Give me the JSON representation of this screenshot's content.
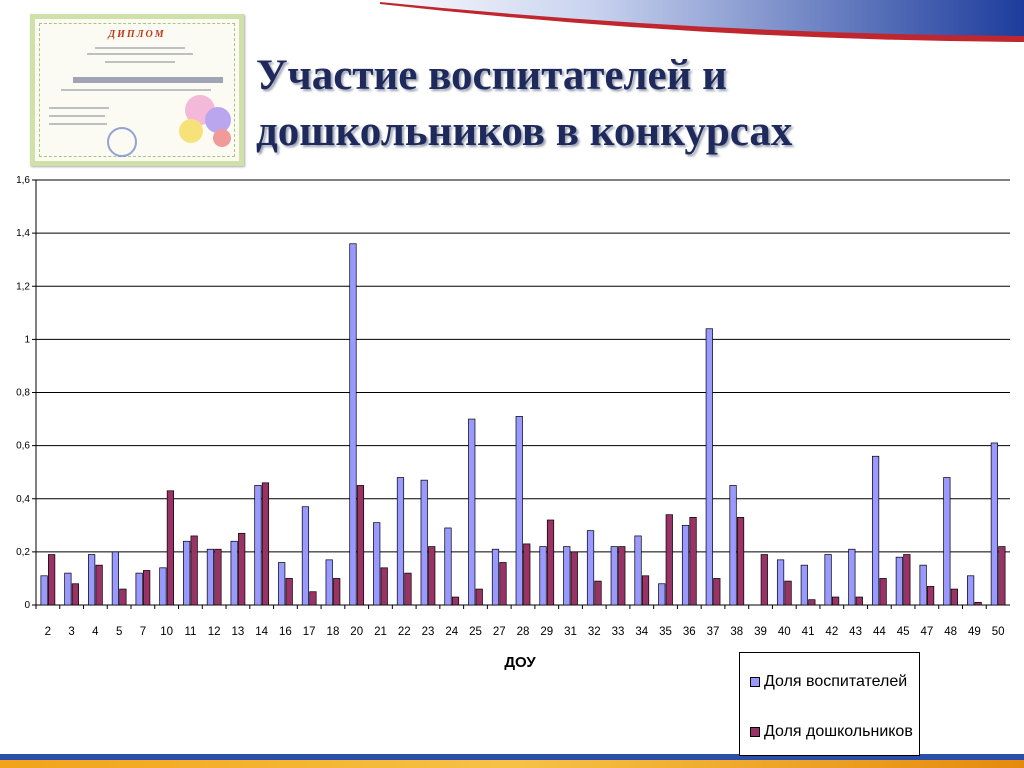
{
  "page": {
    "title_line1": "Участие воспитателей и",
    "title_line2": "дошкольников в конкурсах"
  },
  "diploma": {
    "heading": "ДИПЛОМ",
    "palette": {
      "border": "#cfe1a8",
      "stamp": "#6f86c9"
    }
  },
  "chart_data": {
    "type": "bar",
    "xlabel": "ДОУ",
    "ylabel": "",
    "ylim": [
      0,
      1.6
    ],
    "yticks": [
      "0",
      "0,2",
      "0,4",
      "0,6",
      "0,8",
      "1",
      "1,2",
      "1,4",
      "1,6"
    ],
    "grid": true,
    "legend_position": "bottom-right",
    "categories": [
      "2",
      "3",
      "4",
      "5",
      "7",
      "10",
      "11",
      "12",
      "13",
      "14",
      "16",
      "17",
      "18",
      "20",
      "21",
      "22",
      "23",
      "24",
      "25",
      "27",
      "28",
      "29",
      "31",
      "32",
      "33",
      "34",
      "35",
      "36",
      "37",
      "38",
      "39",
      "40",
      "41",
      "42",
      "43",
      "44",
      "45",
      "47",
      "48",
      "49",
      "50"
    ],
    "series": [
      {
        "name": "Доля воспитателей",
        "color": "#9999ff",
        "values": [
          0.11,
          0.12,
          0.19,
          0.2,
          0.12,
          0.14,
          0.24,
          0.21,
          0.24,
          0.45,
          0.16,
          0.37,
          0.17,
          1.36,
          0.31,
          0.48,
          0.47,
          0.29,
          0.7,
          0.21,
          0.71,
          0.22,
          0.22,
          0.28,
          0.22,
          0.26,
          0.08,
          0.3,
          1.04,
          0.45,
          0.0,
          0.17,
          0.15,
          0.19,
          0.21,
          0.56,
          0.18,
          0.15,
          0.48,
          0.11,
          0.61
        ]
      },
      {
        "name": "Доля дошкольников",
        "color": "#993366",
        "values": [
          0.19,
          0.08,
          0.15,
          0.06,
          0.13,
          0.43,
          0.26,
          0.21,
          0.27,
          0.46,
          0.1,
          0.05,
          0.1,
          0.45,
          0.14,
          0.12,
          0.22,
          0.03,
          0.06,
          0.16,
          0.23,
          0.32,
          0.2,
          0.09,
          0.22,
          0.11,
          0.34,
          0.33,
          0.1,
          0.33,
          0.19,
          0.09,
          0.02,
          0.03,
          0.03,
          0.1,
          0.19,
          0.07,
          0.06,
          0.01,
          0.22
        ]
      }
    ]
  }
}
